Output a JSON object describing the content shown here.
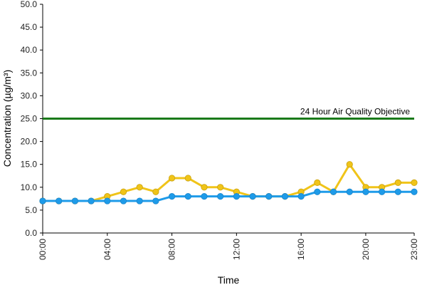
{
  "chart_data": {
    "type": "line",
    "xlabel": "Time",
    "ylabel": "Concentration (µg/m³)",
    "ylim": [
      0,
      50
    ],
    "y_ticks": [
      "0.0",
      "5.0",
      "10.0",
      "15.0",
      "20.0",
      "25.0",
      "30.0",
      "35.0",
      "40.0",
      "45.0",
      "50.0"
    ],
    "x": [
      "00:00",
      "01:00",
      "02:00",
      "03:00",
      "04:00",
      "05:00",
      "06:00",
      "07:00",
      "08:00",
      "09:00",
      "10:00",
      "11:00",
      "12:00",
      "13:00",
      "14:00",
      "15:00",
      "16:00",
      "17:00",
      "18:00",
      "19:00",
      "20:00",
      "21:00",
      "22:00",
      "23:00"
    ],
    "x_tick_labels": [
      "00:00",
      "04:00",
      "08:00",
      "12:00",
      "16:00",
      "20:00",
      "23:00"
    ],
    "x_tick_index": [
      0,
      4,
      8,
      12,
      16,
      20,
      23
    ],
    "objective": {
      "label": "24 Hour Air Quality Objective",
      "value": 25,
      "color": "#1a7a1a"
    },
    "series": [
      {
        "color": "#f0c419",
        "values": [
          7,
          7,
          7,
          7,
          8,
          9,
          10,
          9,
          12,
          12,
          10,
          10,
          9,
          8,
          8,
          8,
          9,
          11,
          9,
          15,
          10,
          10,
          11,
          11
        ]
      },
      {
        "color": "#1e9be9",
        "values": [
          7,
          7,
          7,
          7,
          7,
          7,
          7,
          7,
          8,
          8,
          8,
          8,
          8,
          8,
          8,
          8,
          8,
          9,
          9,
          9,
          9,
          9,
          9,
          9
        ]
      }
    ],
    "grid": false
  }
}
